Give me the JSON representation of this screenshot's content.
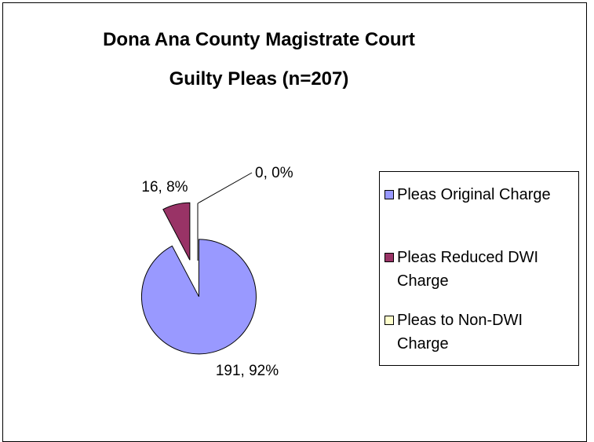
{
  "chart_data": {
    "type": "pie",
    "title": [
      "Dona Ana County Magistrate Court",
      "Guilty Pleas (n=207)"
    ],
    "categories": [
      "Pleas Original Charge",
      "Pleas Reduced  DWI Charge",
      "Pleas to Non-DWI Charge"
    ],
    "values": [
      191,
      16,
      0
    ],
    "value_labels": [
      "191, 92%",
      "16, 8%",
      "0, 0%"
    ],
    "colors": [
      "#9999ff",
      "#993366",
      "#ffffcc"
    ],
    "legend": "right"
  }
}
